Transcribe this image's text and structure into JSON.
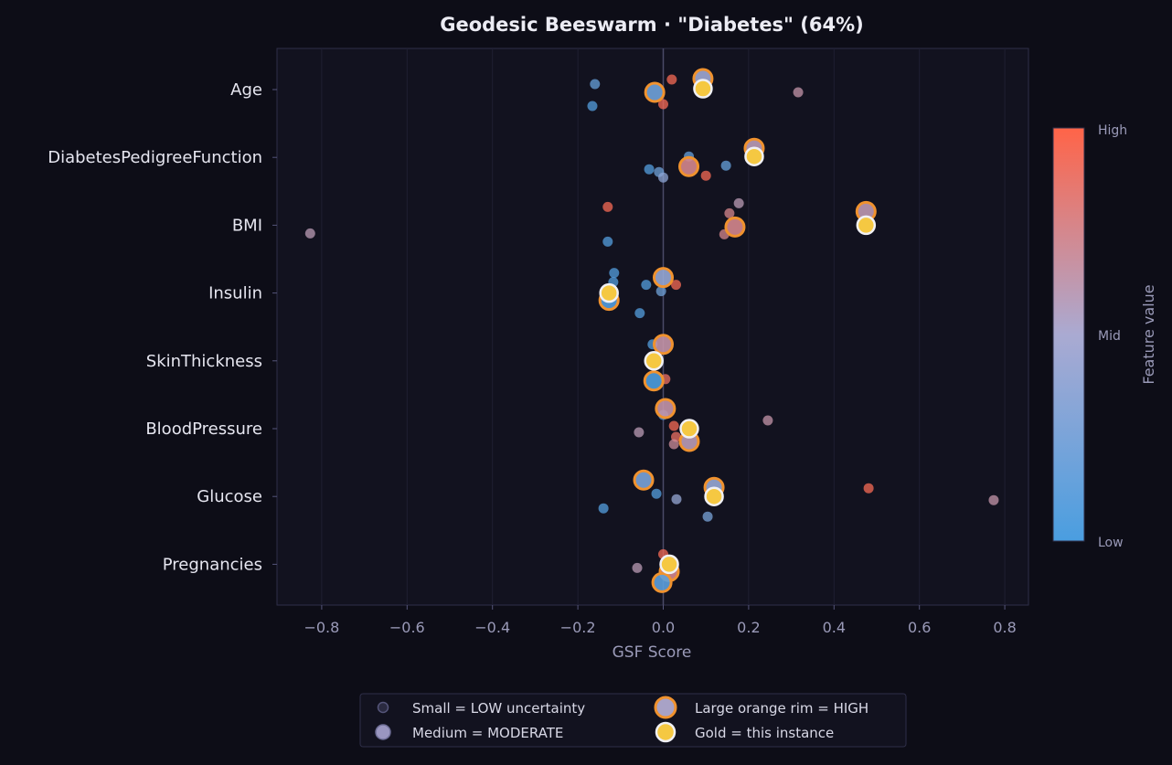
{
  "chart_data": {
    "type": "scatter",
    "subtype": "beeswarm",
    "title": "Geodesic Beeswarm  ·  \"Diabetes\" (64%)",
    "xlabel": "GSF Score",
    "xlim": [
      -0.9,
      0.86
    ],
    "xticks": [
      -0.8,
      -0.6,
      -0.4,
      -0.2,
      0.0,
      0.2,
      0.4,
      0.6,
      0.8
    ],
    "xtick_labels": [
      "−0.8",
      "−0.6",
      "−0.4",
      "−0.2",
      "0.0",
      "0.2",
      "0.4",
      "0.6",
      "0.8"
    ],
    "grid": true,
    "zero_line": true,
    "categories": [
      "Age",
      "DiabetesPedigreeFunction",
      "BMI",
      "Insulin",
      "SkinThickness",
      "BloodPressure",
      "Glucose",
      "Pregnancies"
    ],
    "colorbar": {
      "label": "Feature value",
      "ticks": [
        "High",
        "Mid",
        "Low"
      ],
      "colors": {
        "low": "#4a9ee0",
        "mid": "#aaaad2",
        "high": "#ff6448"
      }
    },
    "legend": {
      "placement": "bottom-center",
      "entries": [
        {
          "label": "Small = LOW uncertainty",
          "kind": "low"
        },
        {
          "label": "Large orange rim = HIGH",
          "kind": "high"
        },
        {
          "label": "Medium = MODERATE",
          "kind": "moderate"
        },
        {
          "label": "Gold = this instance",
          "kind": "instance"
        }
      ]
    },
    "colors": {
      "rim": "#f0922e",
      "gold": "#f5c842",
      "background": "#12121f"
    },
    "series": [
      {
        "feature": "Age",
        "points": [
          {
            "x": -0.16,
            "value": 0.15,
            "unc": "low"
          },
          {
            "x": -0.166,
            "value": 0.05,
            "unc": "low"
          },
          {
            "x": 0.02,
            "value": 0.95,
            "unc": "low"
          },
          {
            "x": 0.0,
            "value": 0.95,
            "unc": "low"
          },
          {
            "x": -0.02,
            "value": 0.2,
            "unc": "high"
          },
          {
            "x": 0.093,
            "value": 0.45,
            "unc": "high"
          },
          {
            "x": 0.093,
            "value": null,
            "unc": "instance"
          },
          {
            "x": 0.316,
            "value": 0.65,
            "unc": "low"
          }
        ]
      },
      {
        "feature": "DiabetesPedigreeFunction",
        "points": [
          {
            "x": -0.033,
            "value": 0.05,
            "unc": "low"
          },
          {
            "x": -0.01,
            "value": 0.2,
            "unc": "low"
          },
          {
            "x": 0.0,
            "value": 0.35,
            "unc": "low"
          },
          {
            "x": 0.06,
            "value": 0.15,
            "unc": "low"
          },
          {
            "x": 0.06,
            "value": 0.75,
            "unc": "high"
          },
          {
            "x": 0.1,
            "value": 0.95,
            "unc": "low"
          },
          {
            "x": 0.147,
            "value": 0.15,
            "unc": "low"
          },
          {
            "x": 0.213,
            "value": 0.6,
            "unc": "high"
          },
          {
            "x": 0.213,
            "value": null,
            "unc": "instance"
          }
        ]
      },
      {
        "feature": "BMI",
        "points": [
          {
            "x": -0.827,
            "value": 0.6,
            "unc": "low"
          },
          {
            "x": -0.13,
            "value": 0.95,
            "unc": "low"
          },
          {
            "x": -0.13,
            "value": 0.05,
            "unc": "low"
          },
          {
            "x": 0.177,
            "value": 0.6,
            "unc": "low"
          },
          {
            "x": 0.155,
            "value": 0.75,
            "unc": "low"
          },
          {
            "x": 0.143,
            "value": 0.75,
            "unc": "low"
          },
          {
            "x": 0.168,
            "value": 0.75,
            "unc": "high"
          },
          {
            "x": 0.475,
            "value": 0.62,
            "unc": "high"
          },
          {
            "x": 0.475,
            "value": null,
            "unc": "instance"
          }
        ]
      },
      {
        "feature": "Insulin",
        "points": [
          {
            "x": -0.115,
            "value": 0.05,
            "unc": "low"
          },
          {
            "x": -0.117,
            "value": 0.05,
            "unc": "low"
          },
          {
            "x": -0.04,
            "value": 0.05,
            "unc": "low"
          },
          {
            "x": -0.005,
            "value": 0.2,
            "unc": "low"
          },
          {
            "x": 0.03,
            "value": 0.95,
            "unc": "low"
          },
          {
            "x": -0.055,
            "value": 0.05,
            "unc": "low"
          },
          {
            "x": 0.0,
            "value": 0.4,
            "unc": "high"
          },
          {
            "x": -0.127,
            "value": 0.05,
            "unc": "high"
          },
          {
            "x": -0.127,
            "value": null,
            "unc": "instance"
          }
        ]
      },
      {
        "feature": "SkinThickness",
        "points": [
          {
            "x": -0.025,
            "value": 0.05,
            "unc": "low"
          },
          {
            "x": 0.0,
            "value": 0.65,
            "unc": "high"
          },
          {
            "x": 0.005,
            "value": 0.9,
            "unc": "low"
          },
          {
            "x": -0.022,
            "value": 0.02,
            "unc": "high"
          },
          {
            "x": -0.022,
            "value": null,
            "unc": "instance"
          }
        ]
      },
      {
        "feature": "BloodPressure",
        "points": [
          {
            "x": 0.0,
            "value": 0.05,
            "unc": "low"
          },
          {
            "x": 0.005,
            "value": 0.65,
            "unc": "high"
          },
          {
            "x": -0.057,
            "value": 0.6,
            "unc": "low"
          },
          {
            "x": 0.025,
            "value": 0.95,
            "unc": "low"
          },
          {
            "x": 0.03,
            "value": 0.9,
            "unc": "low"
          },
          {
            "x": 0.025,
            "value": 0.7,
            "unc": "low"
          },
          {
            "x": 0.061,
            "value": 0.6,
            "unc": "high"
          },
          {
            "x": 0.061,
            "value": null,
            "unc": "instance"
          },
          {
            "x": 0.245,
            "value": 0.65,
            "unc": "low"
          }
        ]
      },
      {
        "feature": "Glucose",
        "points": [
          {
            "x": -0.046,
            "value": 0.25,
            "unc": "high"
          },
          {
            "x": -0.016,
            "value": 0.05,
            "unc": "low"
          },
          {
            "x": 0.031,
            "value": 0.4,
            "unc": "low"
          },
          {
            "x": -0.14,
            "value": 0.05,
            "unc": "low"
          },
          {
            "x": 0.119,
            "value": 0.4,
            "unc": "high"
          },
          {
            "x": 0.119,
            "value": null,
            "unc": "instance"
          },
          {
            "x": 0.104,
            "value": 0.25,
            "unc": "low"
          },
          {
            "x": 0.481,
            "value": 0.95,
            "unc": "low"
          },
          {
            "x": 0.774,
            "value": 0.65,
            "unc": "low"
          }
        ]
      },
      {
        "feature": "Pregnancies",
        "points": [
          {
            "x": 0.0,
            "value": 0.95,
            "unc": "low"
          },
          {
            "x": -0.061,
            "value": 0.6,
            "unc": "low"
          },
          {
            "x": 0.014,
            "value": 0.75,
            "unc": "high"
          },
          {
            "x": -0.003,
            "value": 0.1,
            "unc": "high"
          },
          {
            "x": 0.014,
            "value": null,
            "unc": "instance"
          }
        ]
      }
    ]
  }
}
